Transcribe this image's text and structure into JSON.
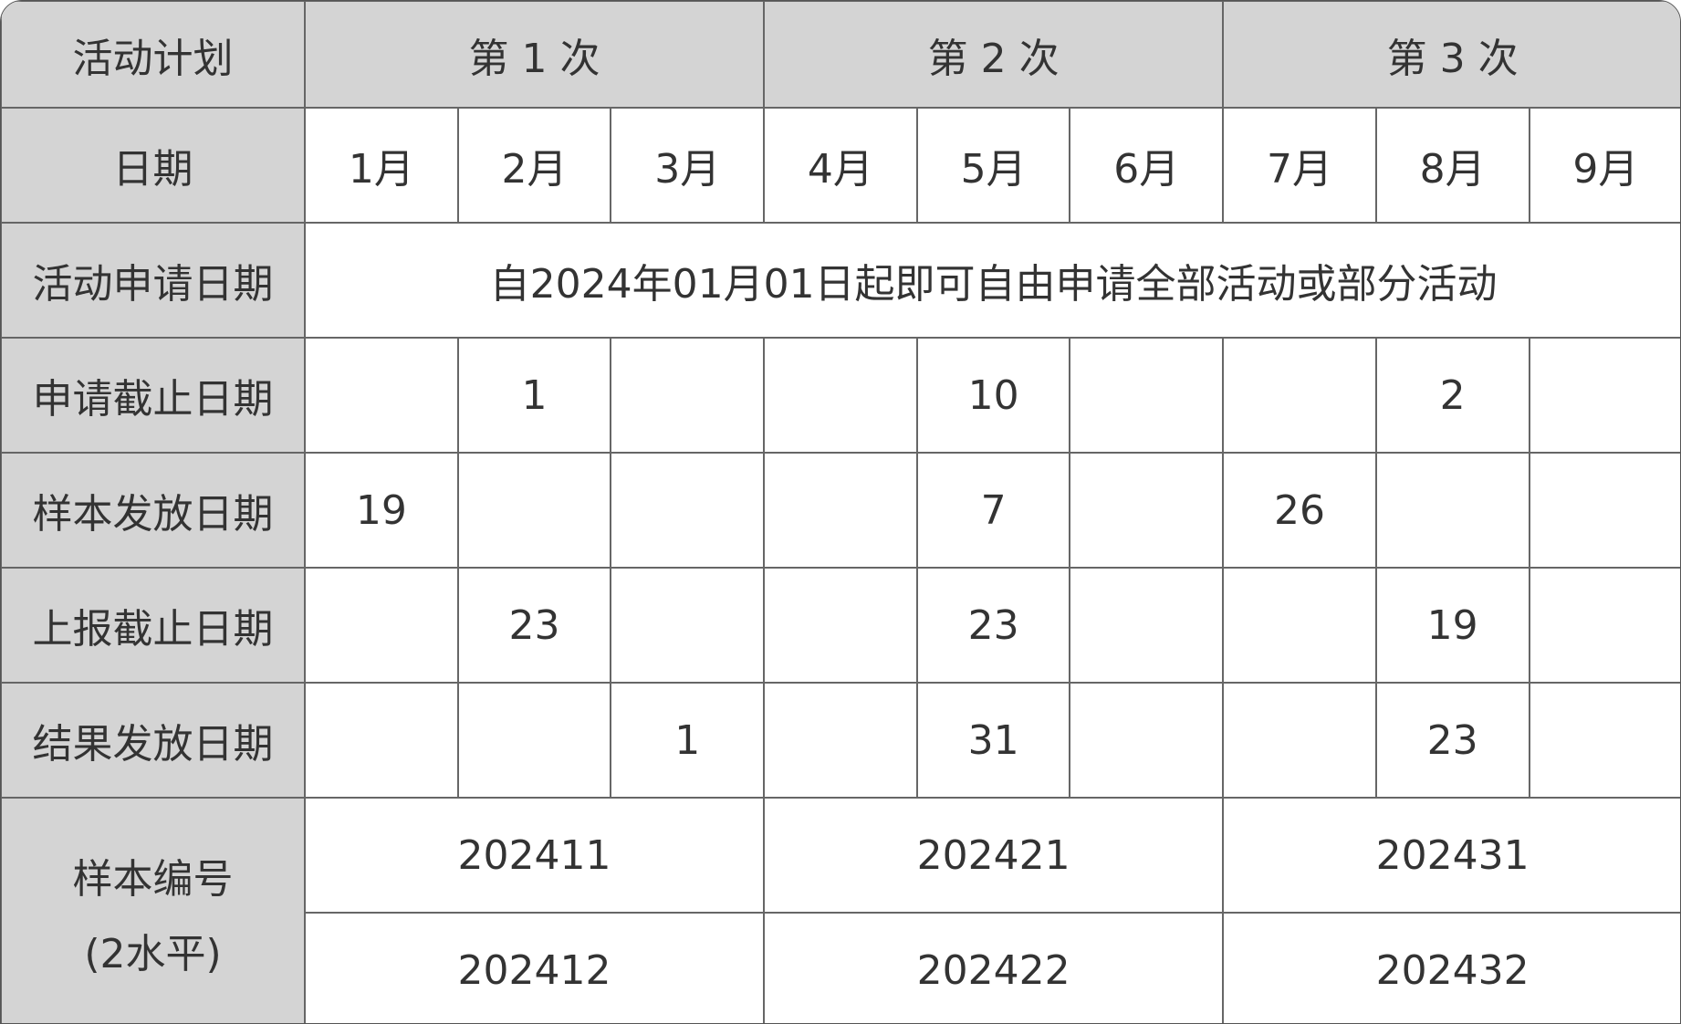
{
  "header": {
    "label": "活动计划",
    "rounds": [
      "第 1 次",
      "第 2 次",
      "第 3 次"
    ]
  },
  "months_row": {
    "label": "日期",
    "months": [
      "1月",
      "2月",
      "3月",
      "4月",
      "5月",
      "6月",
      "7月",
      "8月",
      "9月"
    ]
  },
  "application_row": {
    "label": "活动申请日期",
    "text": "自2024年01月01日起即可自由申请全部活动或部分活动"
  },
  "rows": [
    {
      "label": "申请截止日期",
      "cells": [
        "",
        "1",
        "",
        "",
        "10",
        "",
        "",
        "2",
        ""
      ]
    },
    {
      "label": "样本发放日期",
      "cells": [
        "19",
        "",
        "",
        "",
        "7",
        "",
        "26",
        "",
        ""
      ]
    },
    {
      "label": "上报截止日期",
      "cells": [
        "",
        "23",
        "",
        "",
        "23",
        "",
        "",
        "19",
        ""
      ]
    },
    {
      "label": "结果发放日期",
      "cells": [
        "",
        "",
        "1",
        "",
        "31",
        "",
        "",
        "23",
        ""
      ]
    }
  ],
  "sample_numbers": {
    "label_line1": "样本编号",
    "label_line2": "(2水平)",
    "level1": [
      "202411",
      "202421",
      "202431"
    ],
    "level2": [
      "202412",
      "202422",
      "202432"
    ]
  },
  "colors": {
    "header_bg": "#d4d4d4",
    "border": "#666666",
    "text": "#333333"
  }
}
